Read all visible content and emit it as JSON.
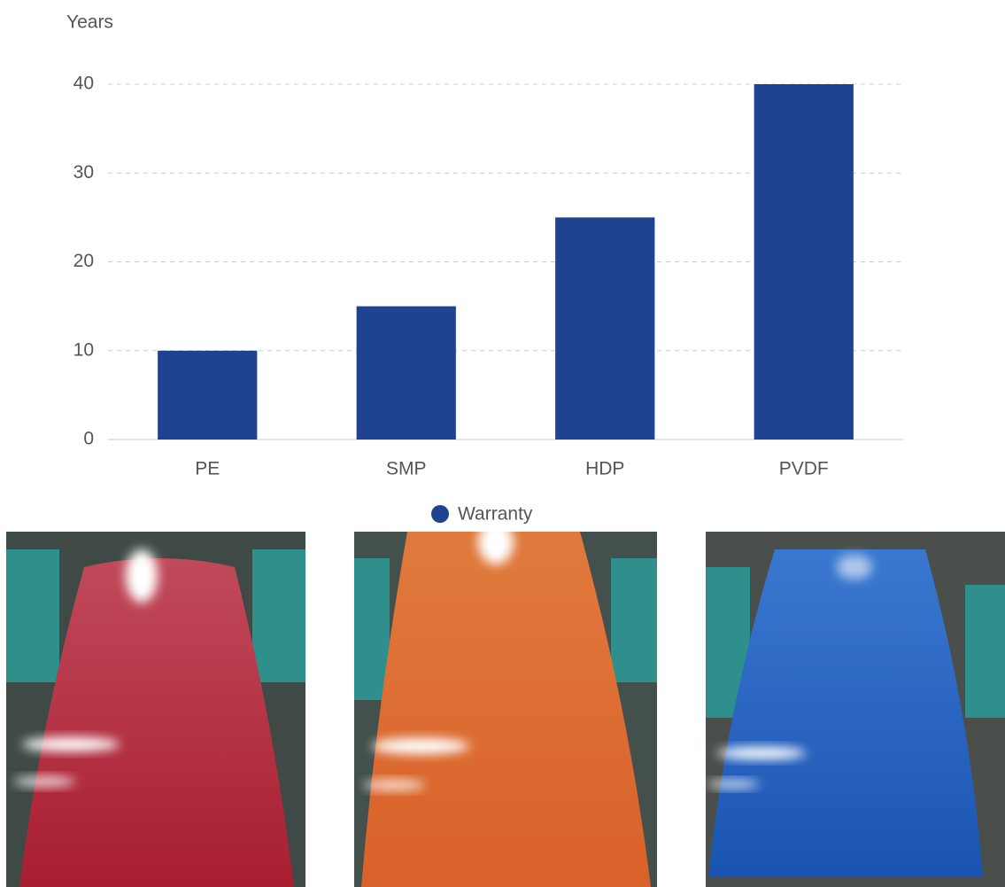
{
  "chart_data": {
    "type": "bar",
    "y_label": "Years",
    "categories": [
      "PE",
      "SMP",
      "HDP",
      "PVDF"
    ],
    "series": [
      {
        "name": "Warranty",
        "color": "#1f4390",
        "values": [
          10,
          15,
          25,
          40
        ]
      }
    ],
    "ylim": [
      0,
      40
    ],
    "yticks": [
      0,
      10,
      20,
      30,
      40
    ],
    "grid": true,
    "legend": "bottom"
  }
}
